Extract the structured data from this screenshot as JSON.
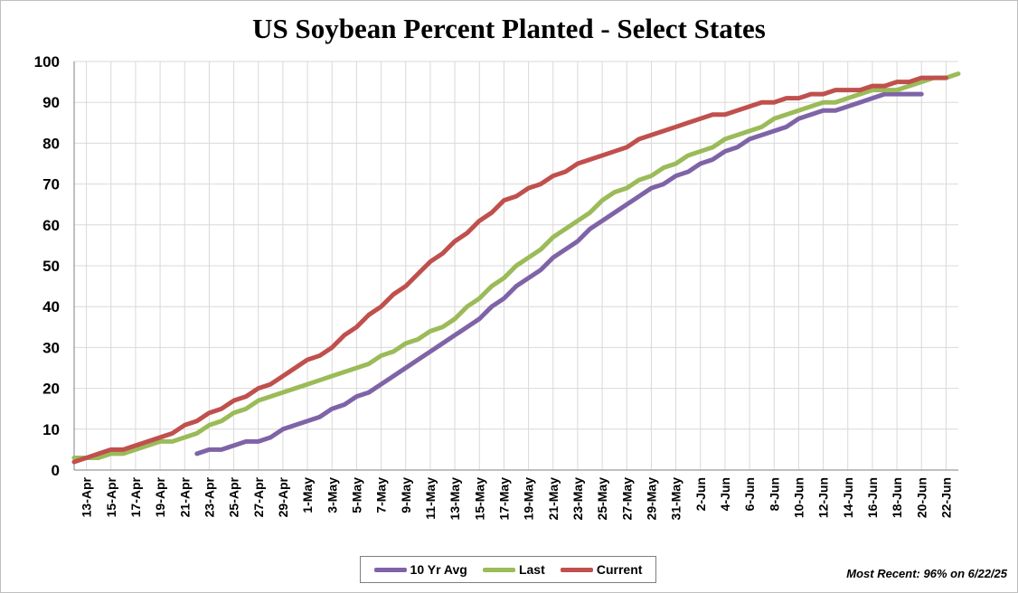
{
  "chart_data": {
    "type": "line",
    "title": "US Soybean Percent Planted - Select States",
    "xlabel": "",
    "ylabel": "",
    "ylim": [
      0,
      100
    ],
    "yticks": [
      0,
      10,
      20,
      30,
      40,
      50,
      60,
      70,
      80,
      90,
      100
    ],
    "grid": true,
    "legend_position": "bottom-center",
    "x": [
      "12-Apr",
      "13-Apr",
      "14-Apr",
      "15-Apr",
      "16-Apr",
      "17-Apr",
      "18-Apr",
      "19-Apr",
      "20-Apr",
      "21-Apr",
      "22-Apr",
      "23-Apr",
      "24-Apr",
      "25-Apr",
      "26-Apr",
      "27-Apr",
      "28-Apr",
      "29-Apr",
      "30-Apr",
      "1-May",
      "2-May",
      "3-May",
      "4-May",
      "5-May",
      "6-May",
      "7-May",
      "8-May",
      "9-May",
      "10-May",
      "11-May",
      "12-May",
      "13-May",
      "14-May",
      "15-May",
      "16-May",
      "17-May",
      "18-May",
      "19-May",
      "20-May",
      "21-May",
      "22-May",
      "23-May",
      "24-May",
      "25-May",
      "26-May",
      "27-May",
      "28-May",
      "29-May",
      "30-May",
      "31-May",
      "1-Jun",
      "2-Jun",
      "3-Jun",
      "4-Jun",
      "5-Jun",
      "6-Jun",
      "7-Jun",
      "8-Jun",
      "9-Jun",
      "10-Jun",
      "11-Jun",
      "12-Jun",
      "13-Jun",
      "14-Jun",
      "15-Jun",
      "16-Jun",
      "17-Jun",
      "18-Jun",
      "19-Jun",
      "20-Jun",
      "21-Jun",
      "22-Jun",
      "23-Jun"
    ],
    "tick_labels": [
      "13-Apr",
      "15-Apr",
      "17-Apr",
      "19-Apr",
      "21-Apr",
      "23-Apr",
      "25-Apr",
      "27-Apr",
      "29-Apr",
      "1-May",
      "3-May",
      "5-May",
      "7-May",
      "9-May",
      "11-May",
      "13-May",
      "15-May",
      "17-May",
      "19-May",
      "21-May",
      "23-May",
      "25-May",
      "27-May",
      "29-May",
      "31-May",
      "2-Jun",
      "4-Jun",
      "6-Jun",
      "8-Jun",
      "10-Jun",
      "12-Jun",
      "14-Jun",
      "16-Jun",
      "18-Jun",
      "20-Jun",
      "22-Jun"
    ],
    "series": [
      {
        "name": "10 Yr Avg",
        "color": "#7f63a7",
        "values": [
          null,
          null,
          null,
          null,
          null,
          null,
          null,
          null,
          null,
          null,
          4,
          5,
          5,
          6,
          7,
          7,
          8,
          10,
          11,
          12,
          13,
          15,
          16,
          18,
          19,
          21,
          23,
          25,
          27,
          29,
          31,
          33,
          35,
          37,
          40,
          42,
          45,
          47,
          49,
          52,
          54,
          56,
          59,
          61,
          63,
          65,
          67,
          69,
          70,
          72,
          73,
          75,
          76,
          78,
          79,
          81,
          82,
          83,
          84,
          86,
          87,
          88,
          88,
          89,
          90,
          91,
          92,
          92,
          92,
          92,
          null,
          null,
          null
        ]
      },
      {
        "name": "Last",
        "color": "#9bbb59",
        "values": [
          3,
          3,
          3,
          4,
          4,
          5,
          6,
          7,
          7,
          8,
          9,
          11,
          12,
          14,
          15,
          17,
          18,
          19,
          20,
          21,
          22,
          23,
          24,
          25,
          26,
          28,
          29,
          31,
          32,
          34,
          35,
          37,
          40,
          42,
          45,
          47,
          50,
          52,
          54,
          57,
          59,
          61,
          63,
          66,
          68,
          69,
          71,
          72,
          74,
          75,
          77,
          78,
          79,
          81,
          82,
          83,
          84,
          86,
          87,
          88,
          89,
          90,
          90,
          91,
          92,
          93,
          93,
          93,
          94,
          95,
          96,
          96,
          97
        ]
      },
      {
        "name": "Current",
        "color": "#c0504d",
        "values": [
          2,
          3,
          4,
          5,
          5,
          6,
          7,
          8,
          9,
          11,
          12,
          14,
          15,
          17,
          18,
          20,
          21,
          23,
          25,
          27,
          28,
          30,
          33,
          35,
          38,
          40,
          43,
          45,
          48,
          51,
          53,
          56,
          58,
          61,
          63,
          66,
          67,
          69,
          70,
          72,
          73,
          75,
          76,
          77,
          78,
          79,
          81,
          82,
          83,
          84,
          85,
          86,
          87,
          87,
          88,
          89,
          90,
          90,
          91,
          91,
          92,
          92,
          93,
          93,
          93,
          94,
          94,
          95,
          95,
          96,
          96,
          96,
          null
        ]
      }
    ],
    "note": "Most Recent: 96% on 6/22/25"
  }
}
